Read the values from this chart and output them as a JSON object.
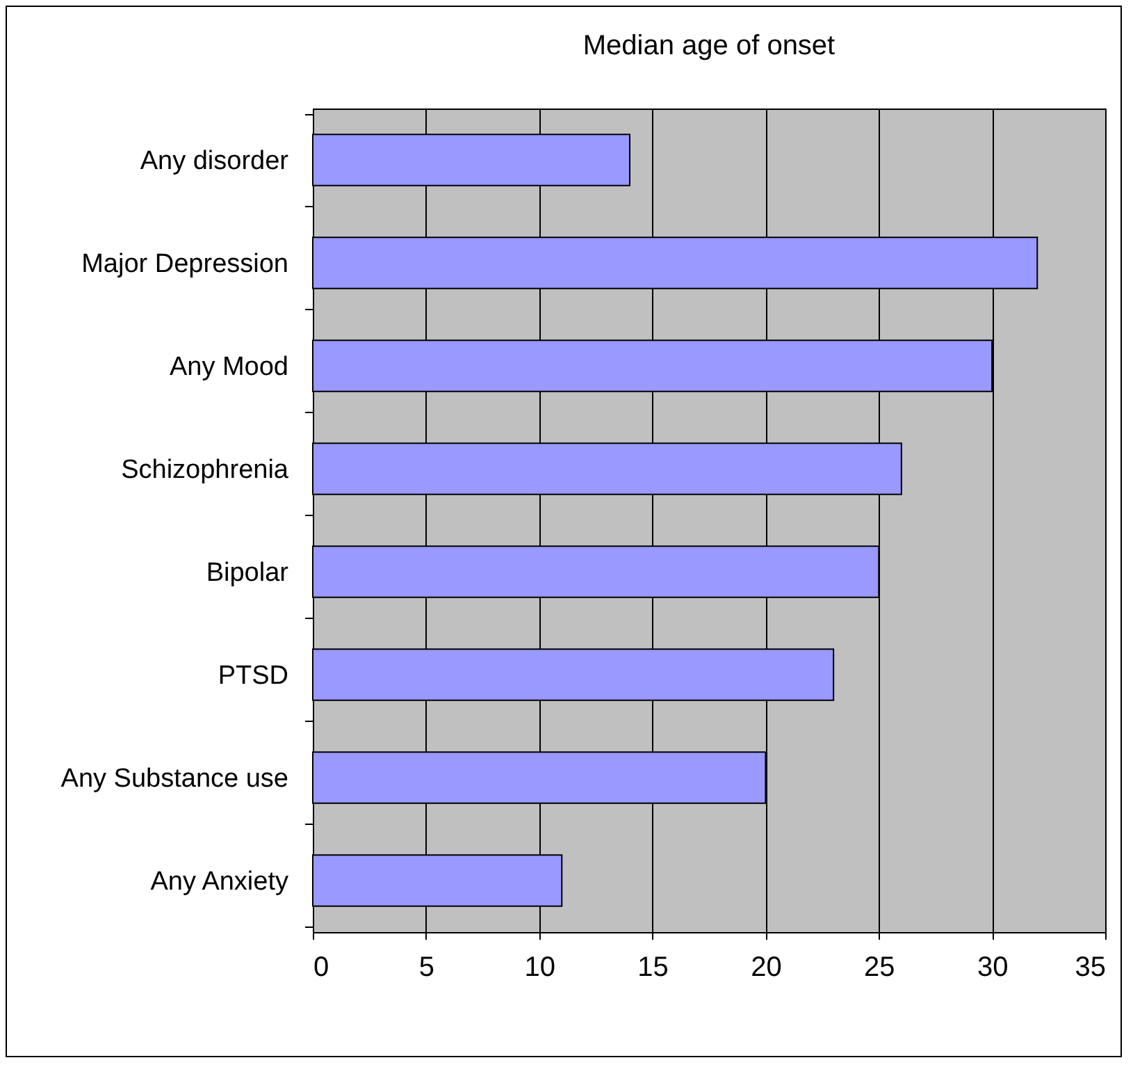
{
  "chart_data": {
    "type": "bar",
    "orientation": "horizontal",
    "title": "Median age of onset",
    "categories": [
      "Any disorder",
      "Major Depression",
      "Any Mood",
      "Schizophrenia",
      "Bipolar",
      "PTSD",
      "Any Substance use",
      "Any Anxiety"
    ],
    "values": [
      14,
      32,
      30,
      26,
      25,
      23,
      20,
      11
    ],
    "color": "#9999ff",
    "xlim": [
      0,
      35
    ],
    "xticks": [
      0,
      5,
      10,
      15,
      20,
      25,
      30,
      35
    ],
    "grid": "x"
  }
}
